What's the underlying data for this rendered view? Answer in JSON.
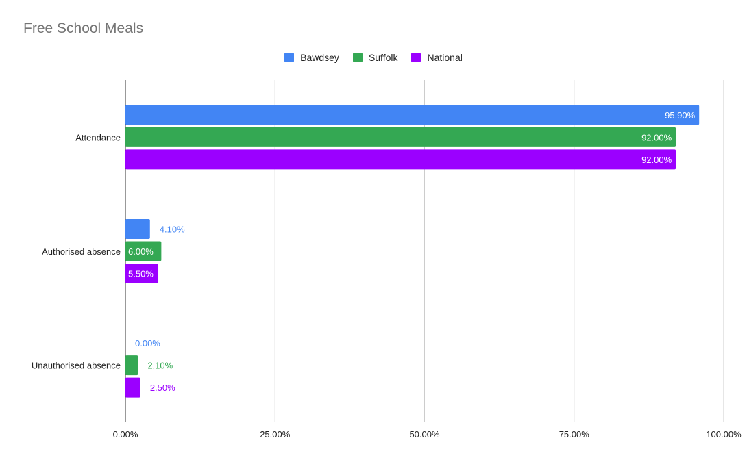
{
  "chart_data": {
    "type": "bar",
    "orientation": "horizontal",
    "title": "Free School Meals",
    "categories": [
      "Attendance",
      "Authorised absence",
      "Unauthorised absence"
    ],
    "series": [
      {
        "name": "Bawdsey",
        "color": "#4285f4",
        "values": [
          95.9,
          4.1,
          0.0
        ],
        "labels": [
          "95.90%",
          "4.10%",
          "0.00%"
        ]
      },
      {
        "name": "Suffolk",
        "color": "#34a853",
        "values": [
          92.0,
          6.0,
          2.1
        ],
        "labels": [
          "92.00%",
          "6.00%",
          "2.10%"
        ]
      },
      {
        "name": "National",
        "color": "#9b00ff",
        "values": [
          92.0,
          5.5,
          2.5
        ],
        "labels": [
          "92.00%",
          "5.50%",
          "2.50%"
        ]
      }
    ],
    "xlim": [
      0,
      100
    ],
    "xticks": [
      0,
      25,
      50,
      75,
      100
    ],
    "xtick_labels": [
      "0.00%",
      "25.00%",
      "50.00%",
      "75.00%",
      "100.00%"
    ],
    "grid": true,
    "legend_position": "top-center"
  }
}
